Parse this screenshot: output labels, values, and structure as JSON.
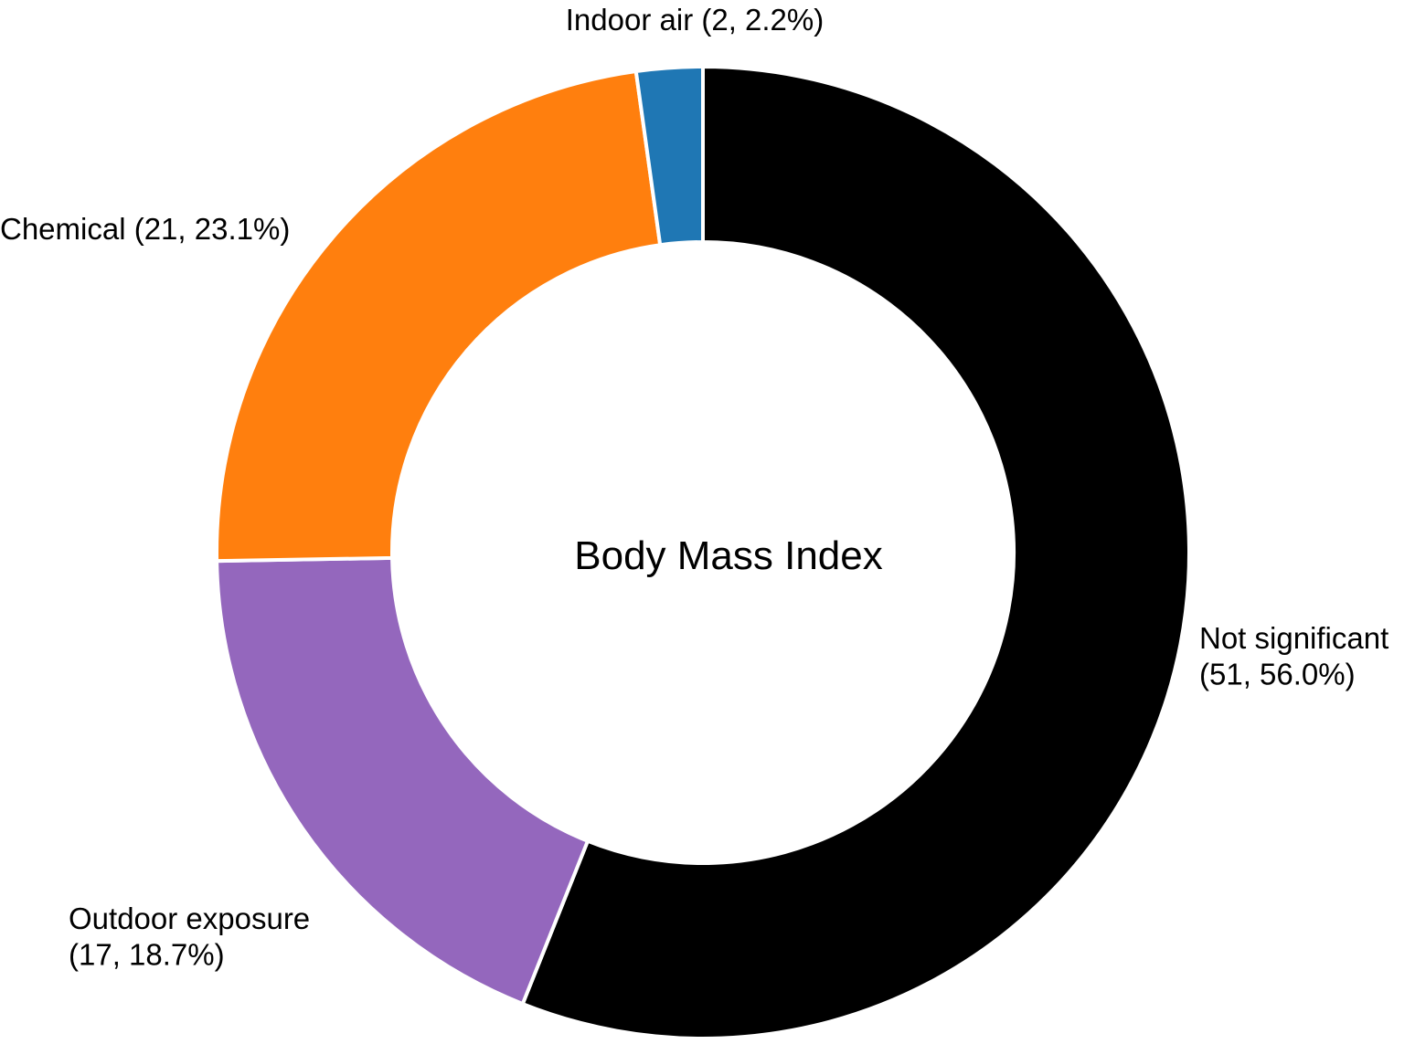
{
  "chart_data": {
    "type": "pie",
    "variant": "donut",
    "center_label": "Body Mass Index",
    "slices": [
      {
        "name": "Not significant",
        "count": 51,
        "percent": 56.0,
        "color": "#000000",
        "label_lines": [
          "Not significant",
          "(51, 56.0%)"
        ]
      },
      {
        "name": "Outdoor exposure",
        "count": 17,
        "percent": 18.7,
        "color": "#9467bd",
        "label_lines": [
          "Outdoor exposure",
          "(17, 18.7%)"
        ]
      },
      {
        "name": "Chemical",
        "count": 21,
        "percent": 23.1,
        "color": "#ff7f0e",
        "label_lines": [
          "Chemical (21, 23.1%)"
        ]
      },
      {
        "name": "Indoor air",
        "count": 2,
        "percent": 2.2,
        "color": "#1f77b4",
        "label_lines": [
          "Indoor air (2, 2.2%)"
        ]
      }
    ],
    "start": "top",
    "direction": "clockwise",
    "legend": "none"
  }
}
